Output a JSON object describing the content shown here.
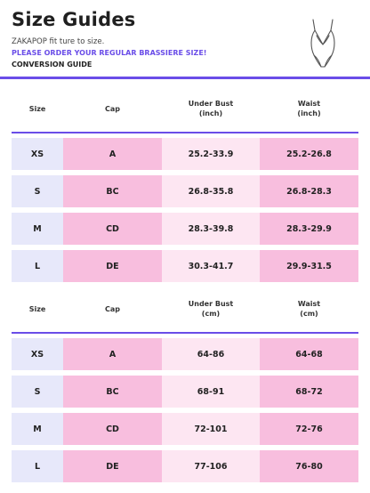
{
  "header": {
    "title": "Size Guides",
    "subtitle": "ZAKAPOP fit ture to size.",
    "notice": "PLEASE ORDER YOUR REGULAR BRASSIERE SIZE!",
    "section_label": "CONVERSION GUIDE",
    "illustration_icon": "bodysuit-outline-icon"
  },
  "colors": {
    "accent": "#6a4de8",
    "size_cell": "#e7e8fa",
    "pink_cell": "#f8bede",
    "light_cell": "#fde6f2"
  },
  "inch_table": {
    "headers": {
      "size": "Size",
      "cap": "Cap",
      "under_bust_line1": "Under Bust",
      "under_bust_line2": "(inch)",
      "waist_line1": "Waist",
      "waist_line2": "(inch)"
    },
    "rows": [
      {
        "size": "XS",
        "cap": "A",
        "under_bust": "25.2-33.9",
        "waist": "25.2-26.8"
      },
      {
        "size": "S",
        "cap": "BC",
        "under_bust": "26.8-35.8",
        "waist": "26.8-28.3"
      },
      {
        "size": "M",
        "cap": "CD",
        "under_bust": "28.3-39.8",
        "waist": "28.3-29.9"
      },
      {
        "size": "L",
        "cap": "DE",
        "under_bust": "30.3-41.7",
        "waist": "29.9-31.5"
      }
    ]
  },
  "cm_table": {
    "headers": {
      "size": "Size",
      "cap": "Cap",
      "under_bust_line1": "Under Bust",
      "under_bust_line2": "(cm)",
      "waist_line1": "Waist",
      "waist_line2": "(cm)"
    },
    "rows": [
      {
        "size": "XS",
        "cap": "A",
        "under_bust": "64-86",
        "waist": "64-68"
      },
      {
        "size": "S",
        "cap": "BC",
        "under_bust": "68-91",
        "waist": "68-72"
      },
      {
        "size": "M",
        "cap": "CD",
        "under_bust": "72-101",
        "waist": "72-76"
      },
      {
        "size": "L",
        "cap": "DE",
        "under_bust": "77-106",
        "waist": "76-80"
      }
    ]
  }
}
